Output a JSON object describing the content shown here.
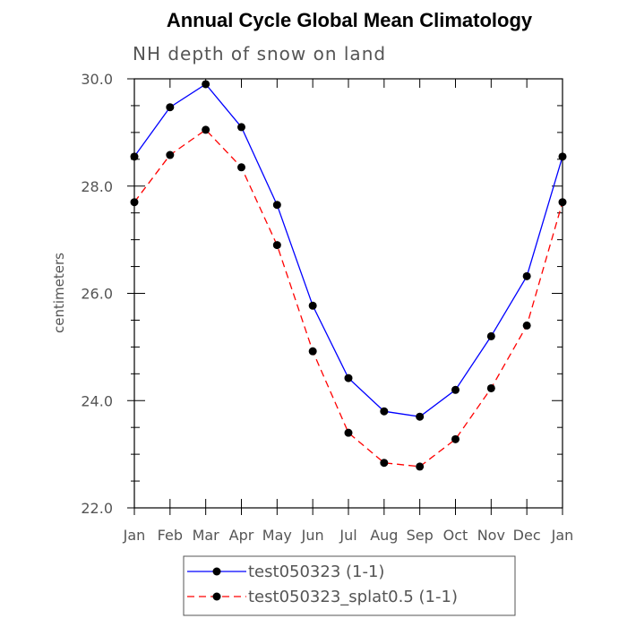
{
  "chart_data": {
    "type": "line",
    "title": "Annual Cycle Global Mean Climatology",
    "subtitle": "NH depth of snow on land",
    "ylabel": "centimeters",
    "xlabel": "",
    "categories": [
      "Jan",
      "Feb",
      "Mar",
      "Apr",
      "May",
      "Jun",
      "Jul",
      "Aug",
      "Sep",
      "Oct",
      "Nov",
      "Dec",
      "Jan"
    ],
    "ylim": [
      22.0,
      30.0
    ],
    "yticks": [
      "22.0",
      "24.0",
      "26.0",
      "28.0",
      "30.0"
    ],
    "series": [
      {
        "name": "test050323 (1-1)",
        "color": "#0000ff",
        "dash": "solid",
        "values": [
          28.55,
          29.47,
          29.9,
          29.1,
          27.65,
          25.77,
          24.42,
          23.8,
          23.7,
          24.2,
          25.2,
          26.32,
          28.55
        ]
      },
      {
        "name": "test050323_splat0.5 (1-1)",
        "color": "#ff0000",
        "dash": "dashed",
        "values": [
          27.7,
          28.58,
          29.05,
          28.35,
          26.9,
          24.92,
          23.4,
          22.84,
          22.77,
          23.28,
          24.23,
          25.4,
          27.7
        ]
      }
    ],
    "legend_position": "bottom"
  }
}
